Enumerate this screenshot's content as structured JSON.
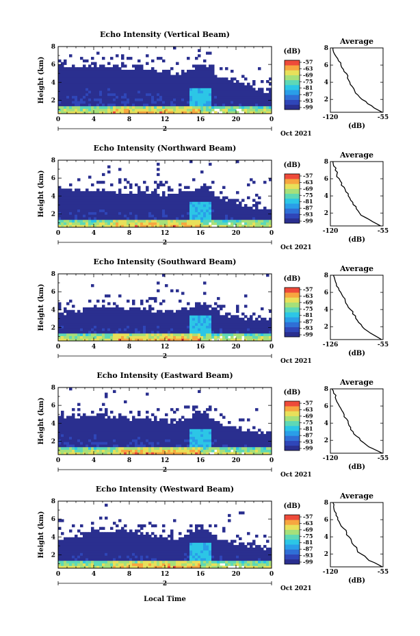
{
  "figure": {
    "xlabel": "Local Time",
    "date_label": "Oct 2021",
    "date_day": "2",
    "colorbar_unit": "(dB)",
    "colorbar_ticks": [
      "-57",
      "-63",
      "-69",
      "-75",
      "-81",
      "-87",
      "-93",
      "-99"
    ],
    "colorscale": [
      "#2a2f8f",
      "#2f46b8",
      "#2f6fd6",
      "#2a9ee8",
      "#2cc6e6",
      "#5ed8b6",
      "#a6e07a",
      "#e8e05a",
      "#f7a640",
      "#ee4a3a"
    ],
    "avg_title": "Average",
    "avg_xlabel": "(dB)",
    "height_ylabel": "Height (km)"
  },
  "chart_data": [
    {
      "type": "heatmap",
      "title": "Echo Intensity (Vertical Beam)",
      "xlabel": "Local Time",
      "ylabel": "Height (km)",
      "x_ticks": [
        "0",
        "4",
        "8",
        "12",
        "16",
        "20",
        "0"
      ],
      "y_ticks": [
        "2",
        "4",
        "6",
        "8"
      ],
      "xlim": [
        0,
        24
      ],
      "ylim": [
        0.5,
        8
      ],
      "colorbar": {
        "label": "(dB)",
        "min": -99,
        "max": -57,
        "ticks": [
          "-57",
          "-63",
          "-69",
          "-75",
          "-81",
          "-87",
          "-93",
          "-99"
        ]
      },
      "echo_top_km": [
        6.3,
        6.1,
        6.0,
        6.1,
        6.2,
        6.0,
        6.0,
        5.9,
        5.8,
        6.0,
        5.8,
        5.6,
        5.5,
        5.2,
        5.3,
        5.7,
        6.5,
        6.0,
        5.0,
        4.5,
        4.4,
        3.8,
        3.6,
        3.3,
        3.2
      ],
      "average_profile": {
        "title": "Average",
        "xlabel": "(dB)",
        "x_ticks": [
          "-120",
          "-55"
        ],
        "xlim": [
          -120,
          -55
        ],
        "y_ticks": [
          "2",
          "4",
          "6",
          "8"
        ],
        "ylim": [
          0.5,
          8
        ],
        "height_km": [
          0.5,
          1.0,
          1.5,
          2.0,
          2.5,
          3.0,
          3.5,
          4.0,
          4.5,
          5.0,
          5.5,
          6.0,
          6.5,
          7.0,
          7.5,
          8.0
        ],
        "values_db": [
          -56,
          -66,
          -74,
          -81,
          -86,
          -90,
          -93,
          -96,
          -99,
          -100,
          -104,
          -107,
          -110,
          -113,
          -116,
          -117
        ]
      }
    },
    {
      "type": "heatmap",
      "title": "Echo Intensity (Northward Beam)",
      "xlabel": "Local Time",
      "ylabel": "Height (km)",
      "x_ticks": [
        "0",
        "4",
        "8",
        "12",
        "16",
        "20",
        "0"
      ],
      "y_ticks": [
        "2",
        "4",
        "6",
        "8"
      ],
      "xlim": [
        0,
        24
      ],
      "ylim": [
        0.5,
        8
      ],
      "colorbar": {
        "label": "(dB)",
        "min": -99,
        "max": -57,
        "ticks": [
          "-57",
          "-63",
          "-69",
          "-75",
          "-81",
          "-87",
          "-93",
          "-99"
        ]
      },
      "echo_top_km": [
        5.0,
        4.9,
        4.8,
        4.9,
        5.0,
        4.9,
        4.8,
        4.7,
        4.6,
        4.7,
        4.6,
        4.5,
        4.4,
        4.3,
        4.4,
        4.8,
        5.2,
        4.8,
        4.2,
        3.8,
        3.6,
        3.2,
        3.0,
        2.9,
        2.8
      ],
      "average_profile": {
        "title": "Average",
        "xlabel": "(dB)",
        "x_ticks": [
          "-120",
          "-55"
        ],
        "xlim": [
          -120,
          -55
        ],
        "y_ticks": [
          "2",
          "4",
          "6",
          "8"
        ],
        "ylim": [
          0.5,
          8
        ],
        "height_km": [
          0.5,
          1.0,
          1.5,
          2.0,
          2.5,
          3.0,
          3.5,
          4.0,
          4.5,
          5.0,
          5.5,
          6.0,
          6.5,
          7.0,
          7.5,
          8.0
        ],
        "values_db": [
          -58,
          -68,
          -77,
          -84,
          -88,
          -92,
          -95,
          -98,
          -101,
          -103,
          -106,
          -109,
          -112,
          -114,
          -116,
          -117
        ]
      }
    },
    {
      "type": "heatmap",
      "title": "Echo Intensity (Southward Beam)",
      "xlabel": "Local Time",
      "ylabel": "Height (km)",
      "x_ticks": [
        "0",
        "4",
        "8",
        "12",
        "16",
        "20",
        "0"
      ],
      "y_ticks": [
        "2",
        "4",
        "6",
        "8"
      ],
      "xlim": [
        0,
        24
      ],
      "ylim": [
        0.5,
        8
      ],
      "colorbar": {
        "label": "(dB)",
        "min": -99,
        "max": -57,
        "ticks": [
          "-57",
          "-63",
          "-69",
          "-75",
          "-81",
          "-87",
          "-93",
          "-99"
        ]
      },
      "echo_top_km": [
        3.8,
        3.9,
        4.0,
        4.2,
        4.5,
        4.7,
        4.6,
        4.5,
        4.4,
        4.3,
        4.2,
        4.1,
        4.0,
        3.9,
        4.0,
        4.5,
        5.0,
        4.5,
        3.9,
        3.6,
        3.5,
        3.3,
        3.2,
        3.1,
        3.0
      ],
      "average_profile": {
        "title": "Average",
        "xlabel": "(dB)",
        "x_ticks": [
          "-126",
          "-55"
        ],
        "xlim": [
          -126,
          -55
        ],
        "y_ticks": [
          "2",
          "4",
          "6",
          "8"
        ],
        "ylim": [
          0.5,
          8
        ],
        "height_km": [
          0.5,
          1.0,
          1.5,
          2.0,
          2.5,
          3.0,
          3.5,
          4.0,
          4.5,
          5.0,
          5.5,
          6.0,
          6.5,
          7.0,
          7.5,
          8.0
        ],
        "values_db": [
          -57,
          -67,
          -76,
          -83,
          -88,
          -92,
          -96,
          -99,
          -103,
          -106,
          -109,
          -112,
          -115,
          -118,
          -120,
          -122
        ]
      }
    },
    {
      "type": "heatmap",
      "title": "Echo Intensity (Eastward Beam)",
      "xlabel": "Local Time",
      "ylabel": "Height (km)",
      "x_ticks": [
        "0",
        "4",
        "8",
        "12",
        "16",
        "20",
        "0"
      ],
      "y_ticks": [
        "2",
        "4",
        "6",
        "8"
      ],
      "xlim": [
        0,
        24
      ],
      "ylim": [
        0.5,
        8
      ],
      "colorbar": {
        "label": "(dB)",
        "min": -99,
        "max": -57,
        "ticks": [
          "-57",
          "-63",
          "-69",
          "-75",
          "-81",
          "-87",
          "-93",
          "-99"
        ]
      },
      "echo_top_km": [
        5.1,
        5.0,
        5.0,
        5.1,
        5.2,
        5.0,
        4.9,
        4.8,
        4.7,
        4.8,
        4.7,
        4.6,
        4.5,
        4.4,
        4.5,
        5.0,
        5.6,
        5.0,
        4.3,
        3.9,
        3.7,
        3.4,
        3.2,
        3.1,
        3.0
      ],
      "average_profile": {
        "title": "Average",
        "xlabel": "(dB)",
        "x_ticks": [
          "-120",
          "-55"
        ],
        "xlim": [
          -120,
          -55
        ],
        "y_ticks": [
          "2",
          "4",
          "6",
          "8"
        ],
        "ylim": [
          0.5,
          8
        ],
        "height_km": [
          0.5,
          1.0,
          1.5,
          2.0,
          2.5,
          3.0,
          3.5,
          4.0,
          4.5,
          5.0,
          5.5,
          6.0,
          6.5,
          7.0,
          7.5,
          8.0
        ],
        "values_db": [
          -56,
          -67,
          -76,
          -83,
          -88,
          -92,
          -95,
          -98,
          -100,
          -103,
          -106,
          -109,
          -112,
          -114,
          -116,
          -118
        ]
      }
    },
    {
      "type": "heatmap",
      "title": "Echo Intensity (Westward Beam)",
      "xlabel": "Local Time",
      "ylabel": "Height (km)",
      "x_ticks": [
        "0",
        "4",
        "8",
        "12",
        "16",
        "20",
        "0"
      ],
      "y_ticks": [
        "2",
        "4",
        "6",
        "8"
      ],
      "xlim": [
        0,
        24
      ],
      "ylim": [
        0.5,
        8
      ],
      "colorbar": {
        "label": "(dB)",
        "min": -99,
        "max": -57,
        "ticks": [
          "-57",
          "-63",
          "-69",
          "-75",
          "-81",
          "-87",
          "-93",
          "-99"
        ]
      },
      "echo_top_km": [
        4.0,
        4.1,
        4.3,
        4.5,
        4.8,
        5.0,
        4.9,
        4.8,
        4.6,
        4.5,
        4.4,
        4.3,
        4.2,
        4.1,
        4.2,
        4.8,
        5.4,
        4.8,
        4.1,
        3.7,
        3.5,
        3.3,
        3.2,
        3.0,
        2.9
      ],
      "average_profile": {
        "title": "Average",
        "xlabel": "(dB)",
        "x_ticks": [
          "-120",
          "-55"
        ],
        "xlim": [
          -120,
          -55
        ],
        "y_ticks": [
          "2",
          "4",
          "6",
          "8"
        ],
        "ylim": [
          0.5,
          8
        ],
        "height_km": [
          0.5,
          1.0,
          1.5,
          2.0,
          2.5,
          3.0,
          3.5,
          4.0,
          4.5,
          5.0,
          5.5,
          6.0,
          6.5,
          7.0,
          7.5,
          8.0
        ],
        "values_db": [
          -56,
          -66,
          -75,
          -82,
          -87,
          -91,
          -94,
          -97,
          -100,
          -104,
          -108,
          -111,
          -113,
          -115,
          -116,
          -117
        ]
      }
    }
  ]
}
